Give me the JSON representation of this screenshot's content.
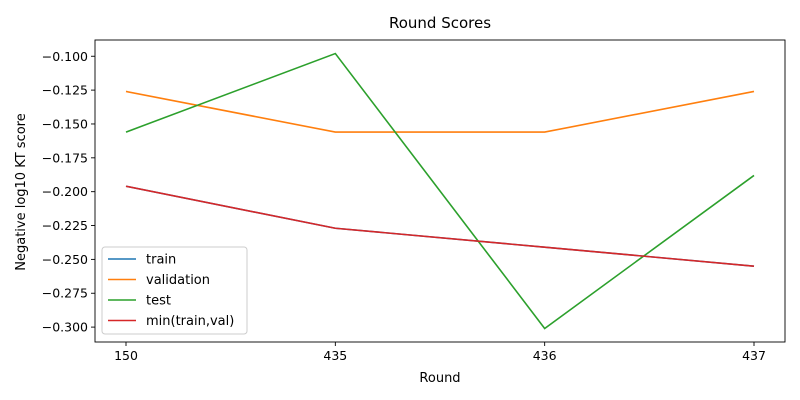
{
  "chart_data": {
    "type": "line",
    "title": "Round Scores",
    "xlabel": "Round",
    "ylabel": "Negative log10 KT score",
    "categories": [
      "150",
      "435",
      "436",
      "437"
    ],
    "ylim": [
      -0.311,
      -0.088
    ],
    "yticks": [
      -0.1,
      -0.125,
      -0.15,
      -0.175,
      -0.2,
      -0.225,
      -0.25,
      -0.275,
      -0.3
    ],
    "ytick_labels": [
      "−0.100",
      "−0.125",
      "−0.150",
      "−0.175",
      "−0.200",
      "−0.225",
      "−0.250",
      "−0.275",
      "−0.300"
    ],
    "grid": false,
    "legend_position": "lower-left",
    "series": [
      {
        "name": "train",
        "color": "#1f77b4",
        "values": [
          -0.196,
          -0.227,
          -0.241,
          -0.255
        ]
      },
      {
        "name": "validation",
        "color": "#ff7f0e",
        "values": [
          -0.126,
          -0.156,
          -0.156,
          -0.126
        ]
      },
      {
        "name": "test",
        "color": "#2ca02c",
        "values": [
          -0.156,
          -0.098,
          -0.301,
          -0.188
        ]
      },
      {
        "name": "min(train,val)",
        "color": "#d62728",
        "values": [
          -0.196,
          -0.227,
          -0.241,
          -0.255
        ]
      }
    ]
  }
}
